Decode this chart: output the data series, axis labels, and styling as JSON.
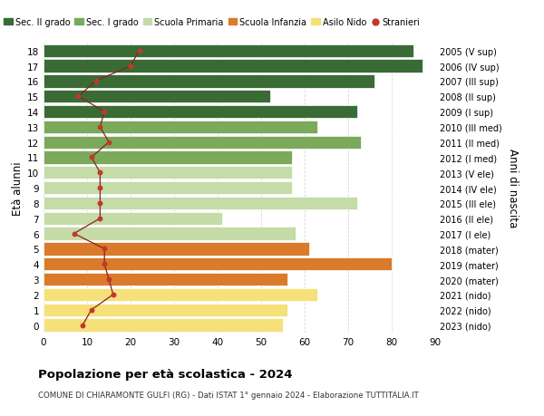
{
  "ages": [
    18,
    17,
    16,
    15,
    14,
    13,
    12,
    11,
    10,
    9,
    8,
    7,
    6,
    5,
    4,
    3,
    2,
    1,
    0
  ],
  "right_labels": [
    "2005 (V sup)",
    "2006 (IV sup)",
    "2007 (III sup)",
    "2008 (II sup)",
    "2009 (I sup)",
    "2010 (III med)",
    "2011 (II med)",
    "2012 (I med)",
    "2013 (V ele)",
    "2014 (IV ele)",
    "2015 (III ele)",
    "2016 (II ele)",
    "2017 (I ele)",
    "2018 (mater)",
    "2019 (mater)",
    "2020 (mater)",
    "2021 (nido)",
    "2022 (nido)",
    "2023 (nido)"
  ],
  "bar_values": [
    85,
    87,
    76,
    52,
    72,
    63,
    73,
    57,
    57,
    57,
    72,
    41,
    58,
    61,
    80,
    56,
    63,
    56,
    55
  ],
  "stranieri_values": [
    22,
    20,
    12,
    8,
    14,
    13,
    15,
    11,
    13,
    13,
    13,
    13,
    7,
    14,
    14,
    15,
    16,
    11,
    9
  ],
  "bar_colors": [
    "#3a6b35",
    "#3a6b35",
    "#3a6b35",
    "#3a6b35",
    "#3a6b35",
    "#7aaa5a",
    "#7aaa5a",
    "#7aaa5a",
    "#c5dba8",
    "#c5dba8",
    "#c5dba8",
    "#c5dba8",
    "#c5dba8",
    "#d97b2a",
    "#d97b2a",
    "#d97b2a",
    "#f5e07a",
    "#f5e07a",
    "#f5e07a"
  ],
  "legend_labels": [
    "Sec. II grado",
    "Sec. I grado",
    "Scuola Primaria",
    "Scuola Infanzia",
    "Asilo Nido",
    "Stranieri"
  ],
  "legend_colors": [
    "#3a6b35",
    "#7aaa5a",
    "#c5dba8",
    "#d97b2a",
    "#f5e07a",
    "#c0392b"
  ],
  "title": "Popolazione per età scolastica - 2024",
  "subtitle": "COMUNE DI CHIARAMONTE GULFI (RG) - Dati ISTAT 1° gennaio 2024 - Elaborazione TUTTITALIA.IT",
  "ylabel_left": "Età alunni",
  "ylabel_right": "Anni di nascita",
  "xlim": [
    0,
    90
  ],
  "xticks": [
    0,
    10,
    20,
    30,
    40,
    50,
    60,
    70,
    80,
    90
  ],
  "bar_height": 0.85,
  "background_color": "#ffffff",
  "grid_color": "#d8d8d8",
  "stranieri_color": "#c0392b",
  "stranieri_line_color": "#8b2020"
}
